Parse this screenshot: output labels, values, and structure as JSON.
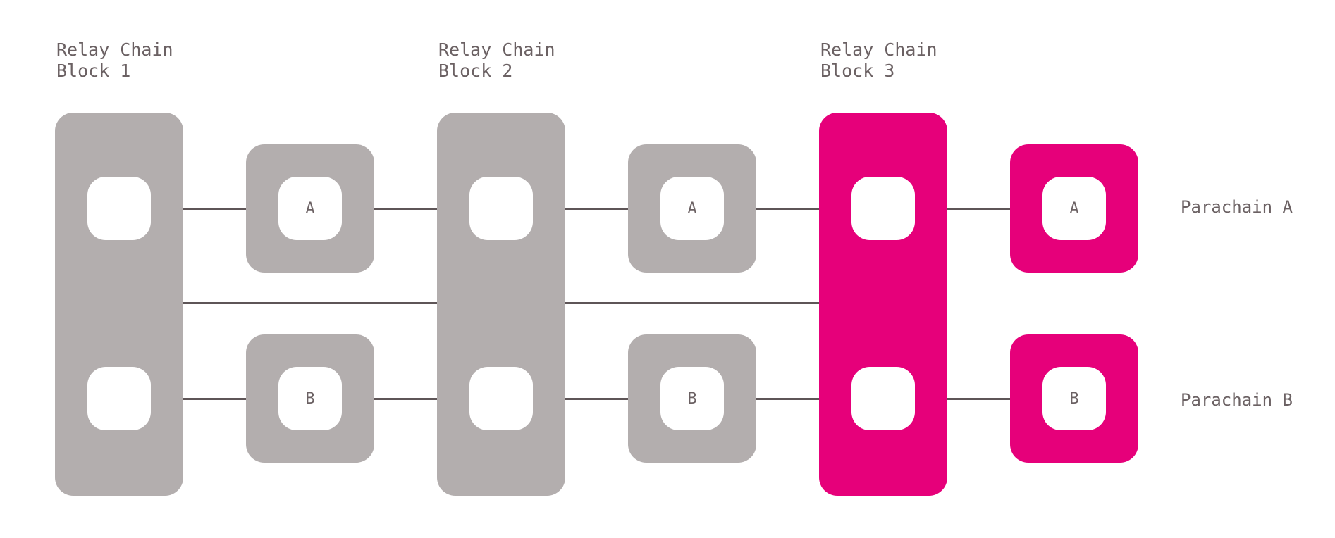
{
  "diagram": {
    "relay_blocks": [
      {
        "title_line1": "Relay Chain",
        "title_line2": "Block 1",
        "status": "past"
      },
      {
        "title_line1": "Relay Chain",
        "title_line2": "Block 2",
        "status": "past"
      },
      {
        "title_line1": "Relay Chain",
        "title_line2": "Block 3",
        "status": "current"
      }
    ],
    "parachains": [
      {
        "name": "Parachain A",
        "letter": "A"
      },
      {
        "name": "Parachain B",
        "letter": "B"
      }
    ],
    "colors": {
      "past_block": "#b3aeae",
      "current_block": "#e6007a",
      "connector": "#5e5557",
      "text": "#6b6163",
      "inner": "#ffffff"
    }
  }
}
